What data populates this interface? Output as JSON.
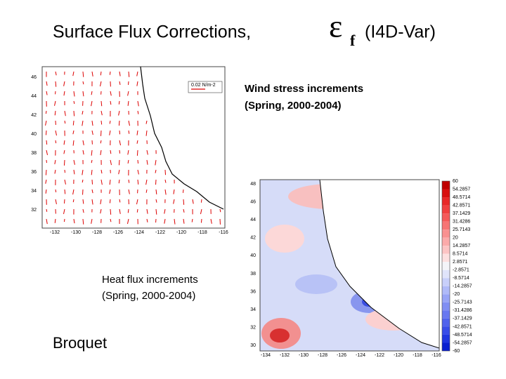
{
  "title": {
    "text": "Surface Flux Corrections,",
    "symbol": "ε",
    "subscript": "f",
    "suffix": "(I4D-Var)"
  },
  "wind_map": {
    "caption": [
      "Wind stress increments",
      "(Spring, 2000-2004)"
    ],
    "scale_label": "0.02 N/m-2",
    "yticks": [
      "46",
      "44",
      "42",
      "40",
      "38",
      "36",
      "34",
      "32"
    ],
    "xticks": [
      "-132",
      "-130",
      "-128",
      "-126",
      "-124",
      "-122",
      "-120",
      "-118",
      "-116"
    ]
  },
  "heat_map": {
    "caption": [
      "Heat flux increments",
      "(Spring, 2000-2004)"
    ],
    "yticks": [
      "48",
      "46",
      "44",
      "42",
      "40",
      "38",
      "36",
      "34",
      "32",
      "30"
    ],
    "xticks": [
      "-134",
      "-132",
      "-130",
      "-128",
      "-126",
      "-124",
      "-122",
      "-120",
      "-118",
      "-116"
    ],
    "colorbar": {
      "labels": [
        "60",
        "54.2857",
        "48.5714",
        "42.8571",
        "37.1429",
        "31.4286",
        "25.7143",
        "20",
        "14.2857",
        "8.5714",
        "2.8571",
        "-2.8571",
        "-8.5714",
        "-14.2857",
        "-20",
        "-25.7143",
        "-31.4286",
        "-37.1429",
        "-42.8571",
        "-48.5714",
        "-54.2857",
        "-60"
      ],
      "colors": [
        "#c00000",
        "#d81010",
        "#e82828",
        "#f04040",
        "#f45a5a",
        "#f77575",
        "#f99090",
        "#fbaaaa",
        "#fcc4c4",
        "#fde0e0",
        "#f4f4f8",
        "#e0e4fb",
        "#c8cffa",
        "#b0baf8",
        "#98a4f6",
        "#808ef3",
        "#6878f0",
        "#5062ec",
        "#384ce8",
        "#2036e0",
        "#0a20d0"
      ]
    }
  },
  "author": "Broquet"
}
